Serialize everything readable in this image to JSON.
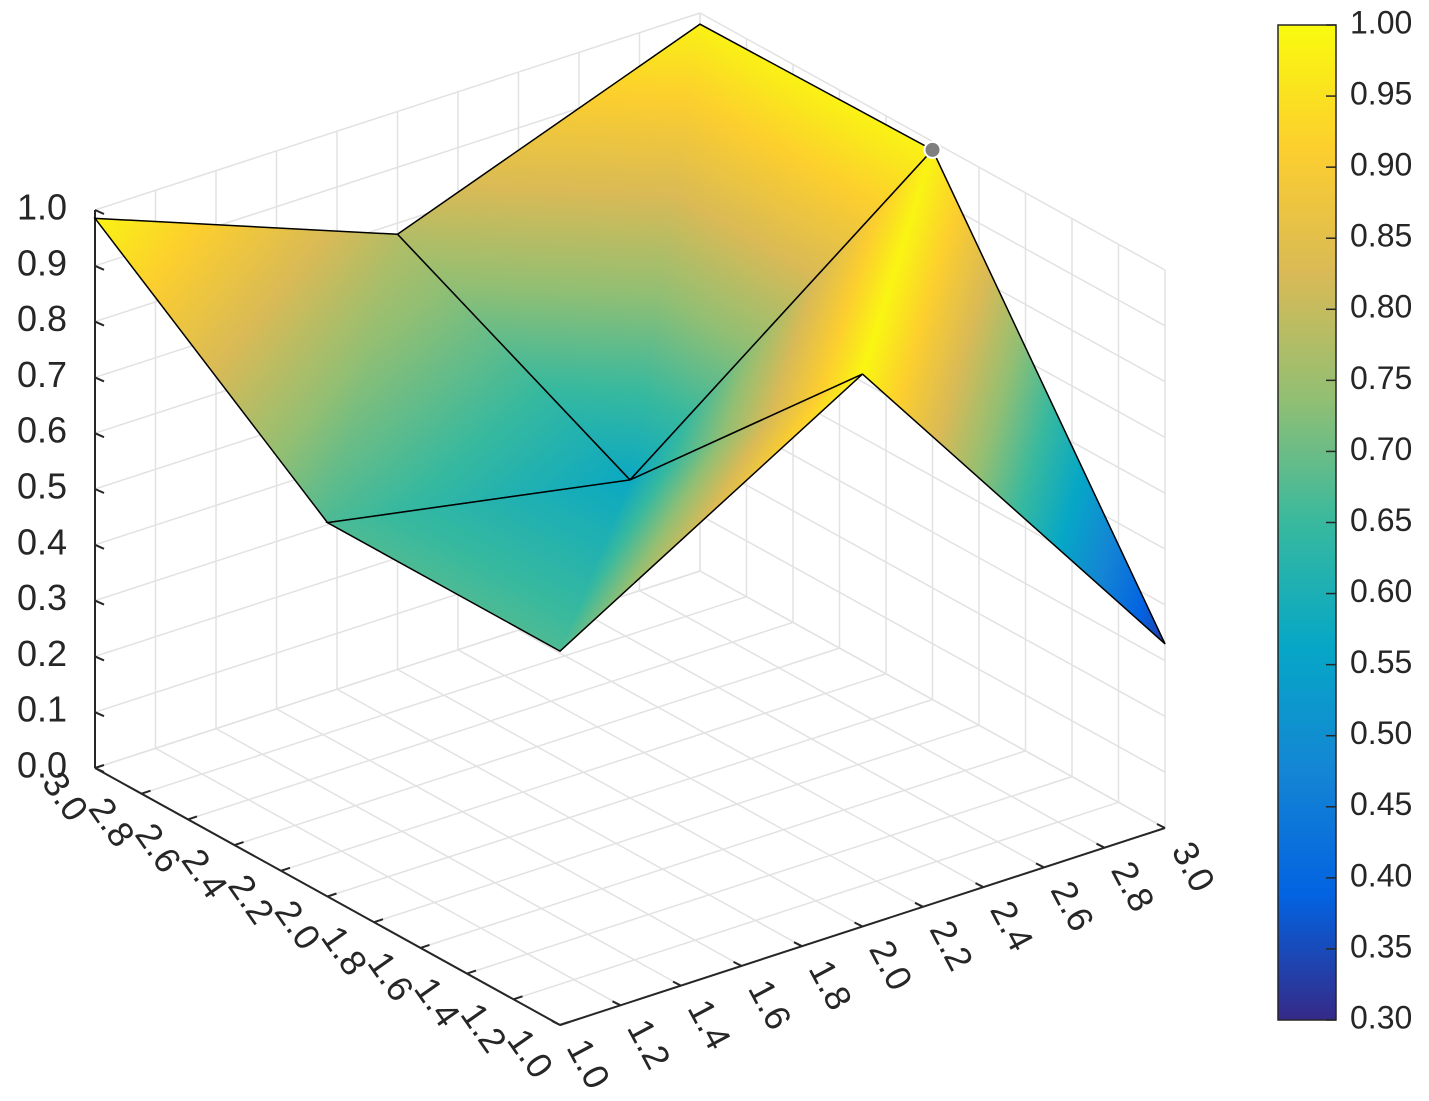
{
  "chart_data": {
    "type": "surface3d",
    "x": [
      1,
      2,
      3
    ],
    "y": [
      1,
      2,
      3
    ],
    "z": [
      [
        0.67,
        0.99,
        0.33
      ],
      [
        0.67,
        0.57,
        0.985
      ],
      [
        0.985,
        0.78,
        0.98
      ]
    ],
    "xlim": [
      1,
      3
    ],
    "ylim": [
      1,
      3
    ],
    "zlim": [
      0,
      1
    ],
    "xticks": [
      {
        "value": 1,
        "label": "1.0"
      },
      1.2,
      1.4,
      1.6,
      1.8,
      {
        "value": 2,
        "label": "2.0"
      },
      2.2,
      2.4,
      2.6,
      2.8,
      {
        "value": 3,
        "label": "3.0"
      }
    ],
    "yticks": [
      {
        "value": 1,
        "label": "1.0"
      },
      1.2,
      1.4,
      1.6,
      1.8,
      {
        "value": 2,
        "label": "2.0"
      },
      2.2,
      2.4,
      2.6,
      2.8,
      {
        "value": 3,
        "label": "3.0"
      }
    ],
    "zticks": [
      {
        "value": 0,
        "label": "0.0"
      },
      0.1,
      0.2,
      0.3,
      0.4,
      0.5,
      0.6,
      0.7,
      0.8,
      0.9,
      {
        "value": 1,
        "label": "1.0"
      }
    ],
    "colorbar": {
      "clim": [
        0.3,
        1.0
      ],
      "ticks": [
        {
          "value": 0.3,
          "label": "0.30"
        },
        0.35,
        {
          "value": 0.4,
          "label": "0.40"
        },
        0.45,
        {
          "value": 0.5,
          "label": "0.50"
        },
        0.55,
        {
          "value": 0.6,
          "label": "0.60"
        },
        0.65,
        {
          "value": 0.7,
          "label": "0.70"
        },
        0.75,
        {
          "value": 0.8,
          "label": "0.80"
        },
        0.85,
        {
          "value": 0.9,
          "label": "0.90"
        },
        0.95,
        {
          "value": 1,
          "label": "1.00"
        }
      ]
    },
    "colormap": [
      "#352a87",
      "#0363e1",
      "#1485d4",
      "#06a7c6",
      "#38b99e",
      "#92bf73",
      "#d9ba56",
      "#fcce2e",
      "#f9fb0e"
    ],
    "edge_color": "#000000",
    "grid": true,
    "highlight": {
      "x": 3,
      "y": 2
    }
  }
}
